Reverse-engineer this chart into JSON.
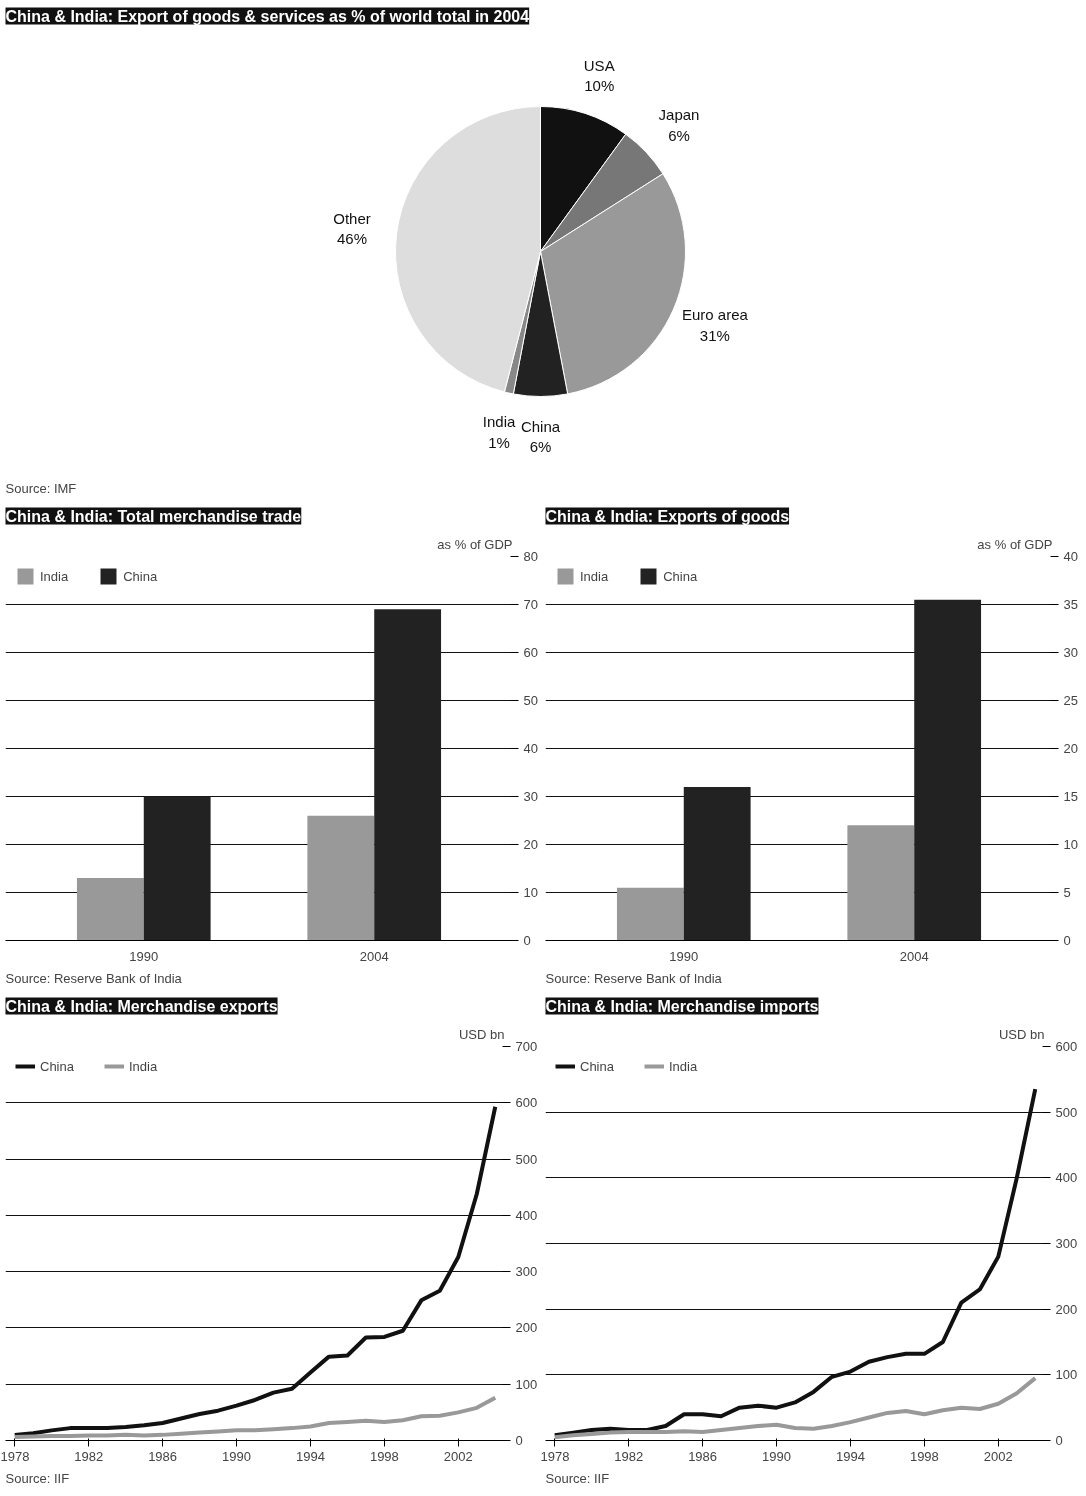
{
  "chart_data": [
    {
      "type": "pie",
      "title": "China & India: Export of goods & services as % of world total in 2004",
      "categories": [
        "USA",
        "Japan",
        "Euro area",
        "China",
        "India",
        "Other"
      ],
      "values": [
        10,
        6,
        31,
        6,
        1,
        46
      ],
      "value_labels": [
        "10%",
        "6%",
        "31%",
        "6%",
        "1%",
        "46%"
      ],
      "colors": [
        "#111111",
        "#777777",
        "#999999",
        "#222222",
        "#888888",
        "#dddddd"
      ],
      "data_labels": true,
      "annotations": [
        "Source: IMF"
      ]
    },
    {
      "type": "bar",
      "title": "China & India: Total merchandise trade",
      "ylabel": "as % of GDP",
      "categories": [
        "1990",
        "2004"
      ],
      "series": [
        {
          "name": "India",
          "color": "#999999",
          "values": [
            13,
            26
          ]
        },
        {
          "name": "China",
          "color": "#222222",
          "values": [
            30,
            69
          ]
        }
      ],
      "ylim": [
        0,
        80
      ],
      "yticks": [
        0,
        10,
        20,
        30,
        40,
        50,
        60,
        70,
        80
      ],
      "grid": "y",
      "legend": "top left",
      "annotations": [
        "Source: Reserve Bank of India"
      ]
    },
    {
      "type": "bar",
      "title": "China & India: Exports of goods",
      "ylabel": "as % of GDP",
      "categories": [
        "1990",
        "2004"
      ],
      "series": [
        {
          "name": "India",
          "color": "#999999",
          "values": [
            5.5,
            12
          ]
        },
        {
          "name": "China",
          "color": "#222222",
          "values": [
            16,
            35.5
          ]
        }
      ],
      "ylim": [
        0,
        40
      ],
      "yticks": [
        0,
        5,
        10,
        15,
        20,
        25,
        30,
        35,
        40
      ],
      "grid": "y",
      "legend": "top left",
      "annotations": [
        "Source: Reserve Bank of India"
      ]
    },
    {
      "type": "line",
      "title": "China & India: Merchandise exports",
      "ylabel": "USD bn",
      "x": [
        1978,
        1979,
        1980,
        1981,
        1982,
        1983,
        1984,
        1985,
        1986,
        1987,
        1988,
        1989,
        1990,
        1991,
        1992,
        1993,
        1994,
        1995,
        1996,
        1997,
        1998,
        1999,
        2000,
        2001,
        2002,
        2003,
        2004
      ],
      "series": [
        {
          "name": "China",
          "color": "#111111",
          "values": [
            10,
            13,
            18,
            22,
            22,
            22,
            24,
            27,
            31,
            39,
            47,
            53,
            62,
            72,
            85,
            92,
            121,
            149,
            151,
            183,
            184,
            195,
            249,
            266,
            326,
            438,
            593
          ]
        },
        {
          "name": "India",
          "color": "#999999",
          "values": [
            6,
            7,
            8,
            8,
            9,
            9,
            10,
            9,
            10,
            12,
            14,
            16,
            18,
            18,
            20,
            22,
            25,
            31,
            33,
            35,
            33,
            36,
            43,
            44,
            50,
            58,
            76
          ]
        }
      ],
      "xlim": [
        1977.5,
        2004.5
      ],
      "xticks": [
        1978,
        1982,
        1986,
        1990,
        1994,
        1998,
        2002
      ],
      "ylim": [
        0,
        700
      ],
      "yticks": [
        0,
        100,
        200,
        300,
        400,
        500,
        600,
        700
      ],
      "grid": "y",
      "legend": "top left",
      "annotations": [
        "Source: IIF"
      ]
    },
    {
      "type": "line",
      "title": "China & India: Merchandise imports",
      "ylabel": "USD bn",
      "x": [
        1978,
        1979,
        1980,
        1981,
        1982,
        1983,
        1984,
        1985,
        1986,
        1987,
        1988,
        1989,
        1990,
        1991,
        1992,
        1993,
        1994,
        1995,
        1996,
        1997,
        1998,
        1999,
        2000,
        2001,
        2002,
        2003,
        2004
      ],
      "series": [
        {
          "name": "China",
          "color": "#111111",
          "values": [
            8,
            12,
            16,
            18,
            16,
            16,
            22,
            40,
            40,
            37,
            50,
            53,
            50,
            58,
            74,
            97,
            105,
            120,
            127,
            132,
            132,
            150,
            210,
            230,
            280,
            400,
            535
          ]
        },
        {
          "name": "India",
          "color": "#999999",
          "values": [
            5,
            8,
            10,
            12,
            13,
            13,
            13,
            14,
            13,
            16,
            19,
            22,
            24,
            19,
            18,
            22,
            28,
            35,
            42,
            45,
            40,
            46,
            50,
            48,
            56,
            72,
            95
          ]
        }
      ],
      "xlim": [
        1977.5,
        2004.5
      ],
      "xticks": [
        1978,
        1982,
        1986,
        1990,
        1994,
        1998,
        2002
      ],
      "ylim": [
        0,
        600
      ],
      "yticks": [
        0,
        100,
        200,
        300,
        400,
        500,
        600
      ],
      "grid": "y",
      "legend": "top left",
      "annotations": [
        "Source: IIF"
      ]
    }
  ]
}
